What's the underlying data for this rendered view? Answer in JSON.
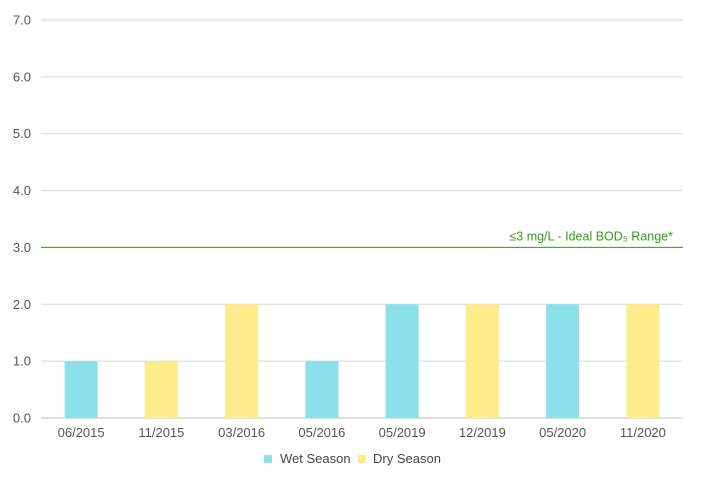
{
  "chart_data": {
    "type": "bar",
    "categories": [
      "06/2015",
      "11/2015",
      "03/2016",
      "05/2016",
      "05/2019",
      "12/2019",
      "05/2020",
      "11/2020"
    ],
    "values": [
      1.0,
      1.0,
      2.0,
      1.0,
      2.0,
      2.0,
      2.0,
      2.0
    ],
    "seasons": [
      "Wet Season",
      "Dry Season",
      "Dry Season",
      "Wet Season",
      "Wet Season",
      "Dry Season",
      "Wet Season",
      "Dry Season"
    ],
    "series": [
      {
        "name": "Wet Season",
        "color": "#8ce0ec"
      },
      {
        "name": "Dry Season",
        "color": "#fdeb8c"
      }
    ],
    "yticks": [
      "0.0",
      "1.0",
      "2.0",
      "3.0",
      "4.0",
      "5.0",
      "6.0",
      "7.0"
    ],
    "ylim": [
      0,
      7
    ],
    "grid": true,
    "legend_position": "bottom",
    "reference_line": {
      "value": 3.0,
      "label": "≤3 mg/L - Ideal BOD₅ Range*",
      "color": "#3a9a1c"
    }
  }
}
